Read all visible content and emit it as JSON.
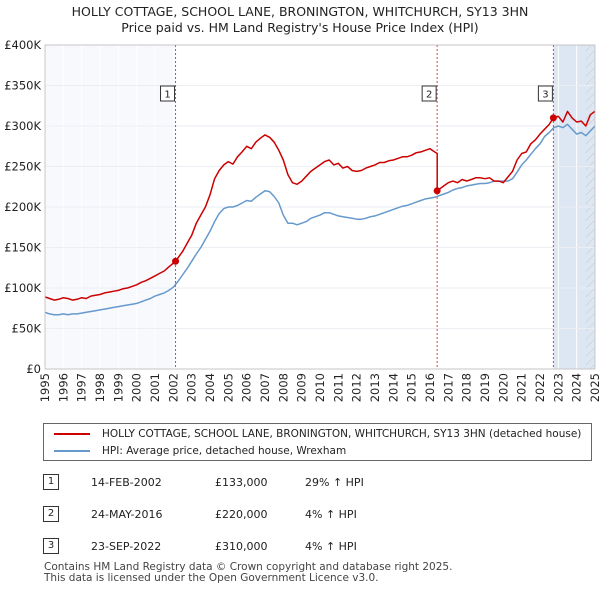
{
  "title": {
    "line1": "HOLLY COTTAGE, SCHOOL LANE, BRONINGTON, WHITCHURCH, SY13 3HN",
    "line2": "Price paid vs. HM Land Registry's House Price Index (HPI)"
  },
  "chart_data": {
    "type": "line",
    "title": "HOLLY COTTAGE, SCHOOL LANE, BRONINGTON, WHITCHURCH, SY13 3HN — Price paid vs. HM Land Registry's House Price Index (HPI)",
    "xlabel": "",
    "ylabel": "",
    "xlim": [
      1995,
      2025
    ],
    "ylim": [
      0,
      400000
    ],
    "grid": true,
    "y_ticks": [
      0,
      50000,
      100000,
      150000,
      200000,
      250000,
      300000,
      350000,
      400000
    ],
    "y_tick_labels": [
      "£0",
      "£50K",
      "£100K",
      "£150K",
      "£200K",
      "£250K",
      "£300K",
      "£350K",
      "£400K"
    ],
    "x_ticks": [
      1995,
      1996,
      1997,
      1998,
      1999,
      2000,
      2001,
      2002,
      2003,
      2004,
      2005,
      2006,
      2007,
      2008,
      2009,
      2010,
      2011,
      2012,
      2013,
      2014,
      2015,
      2016,
      2017,
      2018,
      2019,
      2020,
      2021,
      2022,
      2023,
      2024,
      2025
    ],
    "x_tick_labels": [
      "1995",
      "1996",
      "1997",
      "1998",
      "1999",
      "2000",
      "2001",
      "2002",
      "2003",
      "2004",
      "2005",
      "2006",
      "2007",
      "2008",
      "2009",
      "2010",
      "2011",
      "2012",
      "2013",
      "2014",
      "2015",
      "2016",
      "2017",
      "2018",
      "2019",
      "2020",
      "2021",
      "2022",
      "2023",
      "2024",
      "2025"
    ],
    "series": [
      {
        "name": "HOLLY COTTAGE, SCHOOL LANE, BRONINGTON, WHITCHURCH, SY13 3HN (detached house)",
        "color": "#cc0000",
        "x": [
          1995.0,
          1995.25,
          1995.5,
          1995.75,
          1996.0,
          1996.25,
          1996.5,
          1996.75,
          1997.0,
          1997.25,
          1997.5,
          1997.75,
          1998.0,
          1998.25,
          1998.5,
          1998.75,
          1999.0,
          1999.25,
          1999.5,
          1999.75,
          2000.0,
          2000.25,
          2000.5,
          2000.75,
          2001.0,
          2001.25,
          2001.5,
          2001.75,
          2002.12,
          2002.12,
          2002.5,
          2002.75,
          2003.0,
          2003.25,
          2003.5,
          2003.75,
          2004.0,
          2004.25,
          2004.5,
          2004.75,
          2005.0,
          2005.25,
          2005.5,
          2005.75,
          2006.0,
          2006.25,
          2006.5,
          2006.75,
          2007.0,
          2007.25,
          2007.5,
          2007.75,
          2008.0,
          2008.25,
          2008.5,
          2008.75,
          2009.0,
          2009.25,
          2009.5,
          2009.75,
          2010.0,
          2010.25,
          2010.5,
          2010.75,
          2011.0,
          2011.25,
          2011.5,
          2011.75,
          2012.0,
          2012.25,
          2012.5,
          2012.75,
          2013.0,
          2013.25,
          2013.5,
          2013.75,
          2014.0,
          2014.25,
          2014.5,
          2014.75,
          2015.0,
          2015.25,
          2015.5,
          2015.75,
          2016.0,
          2016.25,
          2016.39,
          2016.39,
          2016.75,
          2017.0,
          2017.25,
          2017.5,
          2017.75,
          2018.0,
          2018.25,
          2018.5,
          2018.75,
          2019.0,
          2019.25,
          2019.5,
          2019.75,
          2020.0,
          2020.25,
          2020.5,
          2020.75,
          2021.0,
          2021.25,
          2021.5,
          2021.75,
          2022.0,
          2022.25,
          2022.5,
          2022.73,
          2022.73,
          2023.0,
          2023.25,
          2023.5,
          2023.75,
          2024.0,
          2024.25,
          2024.5,
          2024.75,
          2025.0
        ],
        "values": [
          89000,
          87000,
          85000,
          86000,
          88000,
          87000,
          85000,
          86000,
          88000,
          87000,
          90000,
          91000,
          92000,
          94000,
          95000,
          96000,
          97000,
          99000,
          100000,
          102000,
          104000,
          107000,
          109000,
          112000,
          115000,
          118000,
          121000,
          126000,
          133000,
          133000,
          145000,
          155000,
          165000,
          180000,
          190000,
          200000,
          215000,
          235000,
          245000,
          252000,
          256000,
          253000,
          262000,
          268000,
          275000,
          272000,
          280000,
          285000,
          289000,
          286000,
          280000,
          270000,
          258000,
          240000,
          230000,
          228000,
          232000,
          238000,
          244000,
          248000,
          252000,
          256000,
          258000,
          252000,
          254000,
          248000,
          250000,
          245000,
          244000,
          245000,
          248000,
          250000,
          252000,
          255000,
          255000,
          257000,
          258000,
          260000,
          262000,
          262000,
          264000,
          267000,
          268000,
          270000,
          272000,
          268000,
          266000,
          220000,
          226000,
          230000,
          232000,
          230000,
          234000,
          232000,
          234000,
          236000,
          236000,
          235000,
          236000,
          232000,
          232000,
          230000,
          237000,
          244000,
          258000,
          266000,
          268000,
          278000,
          283000,
          290000,
          296000,
          302000,
          310000,
          310000,
          312000,
          305000,
          318000,
          310000,
          305000,
          306000,
          300000,
          314000,
          318000
        ]
      },
      {
        "name": "HPI: Average price, detached house, Wrexham",
        "color": "#6699cc",
        "x": [
          1995.0,
          1995.25,
          1995.5,
          1995.75,
          1996.0,
          1996.25,
          1996.5,
          1996.75,
          1997.0,
          1997.25,
          1997.5,
          1997.75,
          1998.0,
          1998.25,
          1998.5,
          1998.75,
          1999.0,
          1999.25,
          1999.5,
          1999.75,
          2000.0,
          2000.25,
          2000.5,
          2000.75,
          2001.0,
          2001.25,
          2001.5,
          2001.75,
          2002.0,
          2002.25,
          2002.5,
          2002.75,
          2003.0,
          2003.25,
          2003.5,
          2003.75,
          2004.0,
          2004.25,
          2004.5,
          2004.75,
          2005.0,
          2005.25,
          2005.5,
          2005.75,
          2006.0,
          2006.25,
          2006.5,
          2006.75,
          2007.0,
          2007.25,
          2007.5,
          2007.75,
          2008.0,
          2008.25,
          2008.5,
          2008.75,
          2009.0,
          2009.25,
          2009.5,
          2009.75,
          2010.0,
          2010.25,
          2010.5,
          2010.75,
          2011.0,
          2011.25,
          2011.5,
          2011.75,
          2012.0,
          2012.25,
          2012.5,
          2012.75,
          2013.0,
          2013.25,
          2013.5,
          2013.75,
          2014.0,
          2014.25,
          2014.5,
          2014.75,
          2015.0,
          2015.25,
          2015.5,
          2015.75,
          2016.0,
          2016.25,
          2016.5,
          2016.75,
          2017.0,
          2017.25,
          2017.5,
          2017.75,
          2018.0,
          2018.25,
          2018.5,
          2018.75,
          2019.0,
          2019.25,
          2019.5,
          2019.75,
          2020.0,
          2020.25,
          2020.5,
          2020.75,
          2021.0,
          2021.25,
          2021.5,
          2021.75,
          2022.0,
          2022.25,
          2022.5,
          2022.75,
          2023.0,
          2023.25,
          2023.5,
          2023.75,
          2024.0,
          2024.25,
          2024.5,
          2024.75,
          2025.0
        ],
        "values": [
          70000,
          68000,
          67000,
          67000,
          68000,
          67000,
          68000,
          68000,
          69000,
          70000,
          71000,
          72000,
          73000,
          74000,
          75000,
          76000,
          77000,
          78000,
          79000,
          80000,
          81000,
          83000,
          85000,
          87000,
          90000,
          92000,
          94000,
          97000,
          101000,
          108000,
          116000,
          124000,
          133000,
          142000,
          150000,
          160000,
          170000,
          182000,
          192000,
          198000,
          200000,
          200000,
          202000,
          205000,
          208000,
          207000,
          212000,
          216000,
          220000,
          219000,
          213000,
          205000,
          190000,
          180000,
          180000,
          178000,
          180000,
          182000,
          186000,
          188000,
          190000,
          193000,
          193000,
          191000,
          189000,
          188000,
          187000,
          186000,
          185000,
          185000,
          186000,
          188000,
          189000,
          191000,
          193000,
          195000,
          197000,
          199000,
          201000,
          202000,
          204000,
          206000,
          208000,
          210000,
          211000,
          212000,
          214000,
          216000,
          218000,
          221000,
          223000,
          224000,
          226000,
          227000,
          228000,
          229000,
          229000,
          230000,
          232000,
          232000,
          232000,
          232000,
          235000,
          243000,
          252000,
          258000,
          265000,
          272000,
          278000,
          287000,
          292000,
          298000,
          300000,
          298000,
          302000,
          296000,
          290000,
          292000,
          288000,
          294000,
          300000
        ]
      }
    ],
    "sales": [
      {
        "label": "1",
        "x": 2002.12,
        "value": 133000
      },
      {
        "label": "2",
        "x": 2016.39,
        "value": 220000
      },
      {
        "label": "3",
        "x": 2022.73,
        "value": 310000
      }
    ],
    "hatched_future_from": 2024.5
  },
  "legend": {
    "property_label": "HOLLY COTTAGE, SCHOOL LANE, BRONINGTON, WHITCHURCH, SY13 3HN (detached house)",
    "hpi_label": "HPI: Average price, detached house, Wrexham",
    "property_color": "#cc0000",
    "hpi_color": "#6699cc"
  },
  "transactions": [
    {
      "num": "1",
      "date": "14-FEB-2002",
      "price": "£133,000",
      "hpi": "29% ↑ HPI"
    },
    {
      "num": "2",
      "date": "24-MAY-2016",
      "price": "£220,000",
      "hpi": "4% ↑ HPI"
    },
    {
      "num": "3",
      "date": "23-SEP-2022",
      "price": "£310,000",
      "hpi": "4% ↑ HPI"
    }
  ],
  "footer": {
    "line1": "Contains HM Land Registry data © Crown copyright and database right 2025.",
    "line2": "This data is licensed under the Open Government Licence v3.0."
  }
}
